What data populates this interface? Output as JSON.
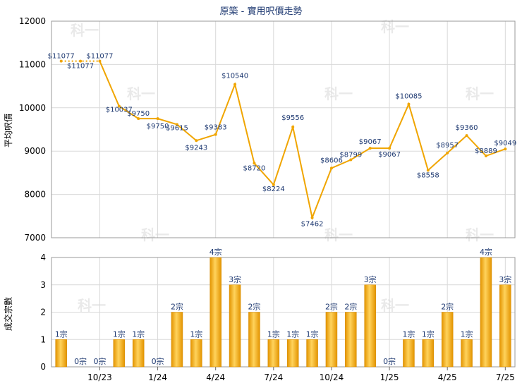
{
  "chart_data": [
    {
      "type": "line",
      "title": "原築 - 實用呎價走勢",
      "ylabel": "平均呎價",
      "ylim": [
        7000,
        12000
      ],
      "yticks": [
        "12000",
        "11000",
        "10000",
        "9000",
        "8000",
        "7000"
      ],
      "color": "#f0a500",
      "series": [
        {
          "values": [
            11077,
            11077,
            11077,
            10037,
            9750,
            9750,
            9615,
            9243,
            9383,
            10540,
            8720,
            8224,
            9556,
            7462,
            8606,
            8799,
            9067,
            9067,
            10085,
            8558,
            8957,
            9360,
            8889,
            9049
          ],
          "labels": [
            "$11077",
            "$11077",
            "$11077",
            "$10037",
            "$9750",
            "$9750",
            "$9615",
            "$9243",
            "$9383",
            "$10540",
            "$8720",
            "$8224",
            "$9556",
            "$7462",
            "$8606",
            "$8799",
            "$9067",
            "$9067",
            "$10085",
            "$8558",
            "$8957",
            "$9360",
            "$8889",
            "$9049"
          ]
        }
      ]
    },
    {
      "type": "bar",
      "ylabel": "成交宗數",
      "ylim": [
        0,
        4
      ],
      "yticks": [
        "4",
        "3",
        "2",
        "1",
        "0"
      ],
      "xticks": [
        "10/23",
        "1/24",
        "4/24",
        "7/24",
        "10/24",
        "1/25",
        "4/25",
        "7/25"
      ],
      "color": "#f0a500",
      "values": [
        1,
        0,
        0,
        1,
        1,
        0,
        2,
        1,
        4,
        3,
        2,
        1,
        1,
        1,
        2,
        2,
        3,
        0,
        1,
        1,
        2,
        1,
        4,
        3
      ],
      "labels": [
        "1宗",
        "0宗",
        "0宗",
        "1宗",
        "1宗",
        "0宗",
        "2宗",
        "1宗",
        "4宗",
        "3宗",
        "2宗",
        "1宗",
        "1宗",
        "1宗",
        "2宗",
        "2宗",
        "3宗",
        "0宗",
        "1宗",
        "1宗",
        "2宗",
        "1宗",
        "4宗",
        "3宗"
      ]
    }
  ],
  "watermark": "科一"
}
